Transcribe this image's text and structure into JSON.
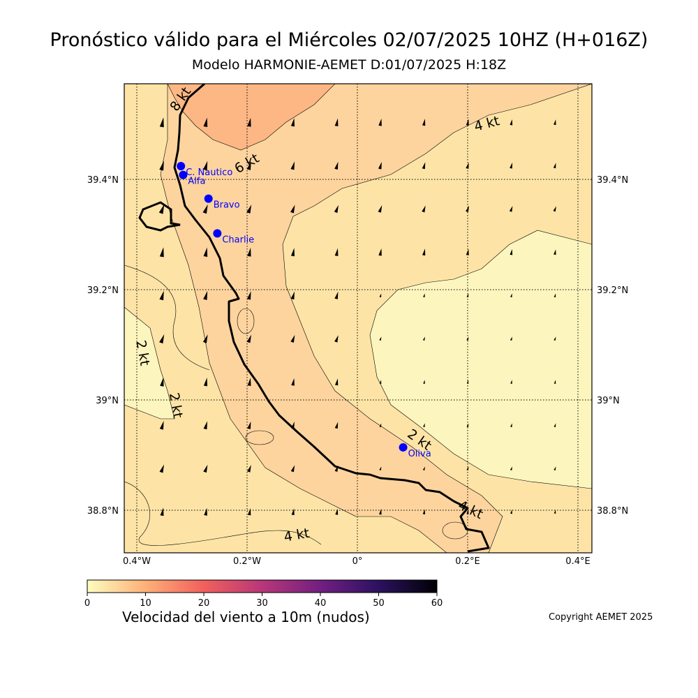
{
  "header": {
    "title": "Pronóstico válido para el Miércoles 02/07/2025 10HZ (H+016Z)",
    "subtitle": "Modelo HARMONIE-AEMET D:01/07/2025 H:18Z"
  },
  "map": {
    "lon_ticks": [
      {
        "value": -0.4,
        "label": "0.4°W"
      },
      {
        "value": -0.2,
        "label": "0.2°W"
      },
      {
        "value": 0.0,
        "label": "0°"
      },
      {
        "value": 0.2,
        "label": "0.2°E"
      },
      {
        "value": 0.4,
        "label": "0.4°E"
      }
    ],
    "lat_ticks": [
      {
        "value": 39.4,
        "label": "39.4°N"
      },
      {
        "value": 39.2,
        "label": "39.2°N"
      },
      {
        "value": 39.0,
        "label": "39°N"
      },
      {
        "value": 38.8,
        "label": "38.8°N"
      }
    ],
    "contour_labels": [
      {
        "text": "8 kt",
        "lon": -0.32,
        "lat": 39.545
      },
      {
        "text": "6 kt",
        "lon": -0.2,
        "lat": 39.428
      },
      {
        "text": "4 kt",
        "lon": 0.235,
        "lat": 39.5
      },
      {
        "text": "2 kt",
        "lon": -0.39,
        "lat": 39.085
      },
      {
        "text": "2 kt",
        "lon": -0.33,
        "lat": 38.99
      },
      {
        "text": "2 kt",
        "lon": 0.112,
        "lat": 38.927
      },
      {
        "text": "4 kt",
        "lon": 0.205,
        "lat": 38.8
      },
      {
        "text": "4 kt",
        "lon": -0.11,
        "lat": 38.754
      }
    ],
    "stations": [
      {
        "name": "C. Nautico",
        "lon": -0.32,
        "lat": 39.424
      },
      {
        "name": "Alfa",
        "lon": -0.316,
        "lat": 39.408
      },
      {
        "name": "Bravo",
        "lon": -0.27,
        "lat": 39.365
      },
      {
        "name": "Charlie",
        "lon": -0.254,
        "lat": 39.302
      },
      {
        "name": "Oliva",
        "lon": 0.083,
        "lat": 38.914
      }
    ],
    "colors": {
      "station": "#0000ff",
      "coast": "#000000",
      "calm": "#fcf5bd",
      "light": "#fde4a6",
      "moderate": "#fdd49e",
      "strong": "#fdb784"
    }
  },
  "colorbar": {
    "ticks": [
      "0",
      "10",
      "20",
      "30",
      "40",
      "50",
      "60"
    ],
    "label": "Velocidad del viento a 10m (nudos)",
    "stops": [
      "#fcfdbf",
      "#feb078",
      "#f1605d",
      "#b73779",
      "#721f81",
      "#2c115f",
      "#000004"
    ]
  },
  "copyright": "Copyright AEMET 2025"
}
